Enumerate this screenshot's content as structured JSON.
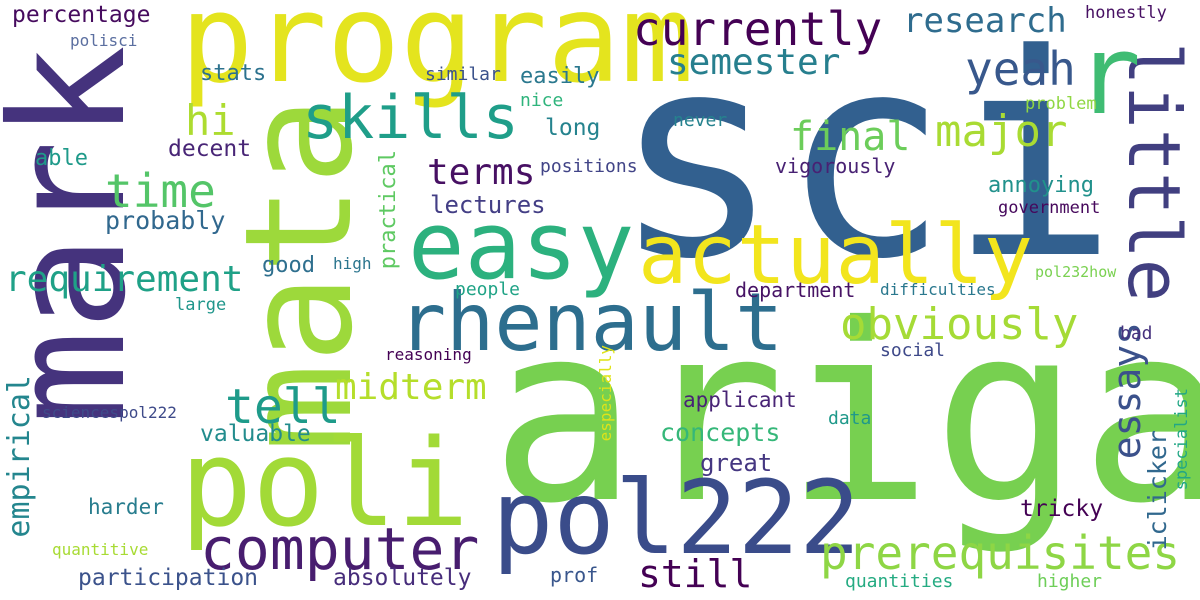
{
  "words": [
    {
      "text": "sci",
      "color": "#32608f",
      "vertical": false
    },
    {
      "text": "ariga",
      "color": "#77d050",
      "vertical": false
    },
    {
      "text": "mark",
      "color": "#45337d",
      "vertical": true
    },
    {
      "text": "program",
      "color": "#e4e41e",
      "vertical": false
    },
    {
      "text": "mata",
      "color": "#9dd93b",
      "vertical": true
    },
    {
      "text": "poli",
      "color": "#a2da37",
      "vertical": false
    },
    {
      "text": "pol222",
      "color": "#3a4c8a",
      "vertical": false
    },
    {
      "text": "easy",
      "color": "#2cb17e",
      "vertical": false
    },
    {
      "text": "actually",
      "color": "#f2e51d",
      "vertical": false
    },
    {
      "text": "rhenault",
      "color": "#2d6e8e",
      "vertical": false
    },
    {
      "text": "little",
      "color": "#413f80",
      "vertical": true
    },
    {
      "text": "r",
      "color": "#3fbc73",
      "vertical": false
    },
    {
      "text": "computer",
      "color": "#481d6f",
      "vertical": false
    },
    {
      "text": "prerequisites",
      "color": "#8ed645",
      "vertical": false
    },
    {
      "text": "skills",
      "color": "#1f9e89",
      "vertical": false
    },
    {
      "text": "currently",
      "color": "#440154",
      "vertical": false
    },
    {
      "text": "obviously",
      "color": "#a5db36",
      "vertical": false
    },
    {
      "text": "yeah",
      "color": "#38588c",
      "vertical": false
    },
    {
      "text": "major",
      "color": "#a9db33",
      "vertical": false
    },
    {
      "text": "research",
      "color": "#2f6c8e",
      "vertical": false
    },
    {
      "text": "semester",
      "color": "#277f8e",
      "vertical": false
    },
    {
      "text": "time",
      "color": "#54c568",
      "vertical": false
    },
    {
      "text": "final",
      "color": "#6ccd5a",
      "vertical": false
    },
    {
      "text": "hi",
      "color": "#addc30",
      "vertical": false
    },
    {
      "text": "tell",
      "color": "#1e9b8a",
      "vertical": false
    },
    {
      "text": "terms",
      "color": "#471063",
      "vertical": false
    },
    {
      "text": "requirement",
      "color": "#1fa187",
      "vertical": false
    },
    {
      "text": "midterm",
      "color": "#b5de2b",
      "vertical": false
    },
    {
      "text": "still",
      "color": "#440154",
      "vertical": false
    },
    {
      "text": "essays",
      "color": "#3b518b",
      "vertical": true
    },
    {
      "text": "empirical",
      "color": "#24868e",
      "vertical": true
    },
    {
      "text": "concepts",
      "color": "#35b779",
      "vertical": false
    },
    {
      "text": "lectures",
      "color": "#433e85",
      "vertical": false
    },
    {
      "text": "stats",
      "color": "#2c728e",
      "vertical": false
    },
    {
      "text": "percentage",
      "color": "#460b5e",
      "vertical": false
    },
    {
      "text": "probably",
      "color": "#31688e",
      "vertical": false
    },
    {
      "text": "valuable",
      "color": "#228c8d",
      "vertical": false
    },
    {
      "text": "annoying",
      "color": "#21918c",
      "vertical": false
    },
    {
      "text": "decent",
      "color": "#482576",
      "vertical": false
    },
    {
      "text": "participation",
      "color": "#3b528b",
      "vertical": false
    },
    {
      "text": "absolutely",
      "color": "#472d7b",
      "vertical": false
    },
    {
      "text": "great",
      "color": "#453781",
      "vertical": false
    },
    {
      "text": "easily",
      "color": "#2a788e",
      "vertical": false
    },
    {
      "text": "long",
      "color": "#25838e",
      "vertical": false
    },
    {
      "text": "good",
      "color": "#2e6f8e",
      "vertical": false
    },
    {
      "text": "iclicker",
      "color": "#31688e",
      "vertical": true
    },
    {
      "text": "practical",
      "color": "#5ec962",
      "vertical": true
    },
    {
      "text": "vigorously",
      "color": "#482173",
      "vertical": false
    },
    {
      "text": "harder",
      "color": "#287d8e",
      "vertical": false
    },
    {
      "text": "tricky",
      "color": "#440154",
      "vertical": false
    },
    {
      "text": "able",
      "color": "#1f9a8a",
      "vertical": false
    },
    {
      "text": "department",
      "color": "#471365",
      "vertical": false
    },
    {
      "text": "applicant",
      "color": "#482475",
      "vertical": false
    },
    {
      "text": "prof",
      "color": "#39568c",
      "vertical": false
    },
    {
      "text": "government",
      "color": "#46085c",
      "vertical": false
    },
    {
      "text": "honestly",
      "color": "#471063",
      "vertical": false
    },
    {
      "text": "nice",
      "color": "#2fb47c",
      "vertical": false
    },
    {
      "text": "similar",
      "color": "#3b528b",
      "vertical": false
    },
    {
      "text": "positions",
      "color": "#414487",
      "vertical": false
    },
    {
      "text": "people",
      "color": "#20a386",
      "vertical": false
    },
    {
      "text": "never",
      "color": "#26828e",
      "vertical": false
    },
    {
      "text": "problem",
      "color": "#90d743",
      "vertical": false
    },
    {
      "text": "data",
      "color": "#1f998a",
      "vertical": false
    },
    {
      "text": "social",
      "color": "#3e4989",
      "vertical": false
    },
    {
      "text": "bad",
      "color": "#46327e",
      "vertical": false
    },
    {
      "text": "specialist",
      "color": "#22a785",
      "vertical": true
    },
    {
      "text": "higher",
      "color": "#6ece58",
      "vertical": false
    },
    {
      "text": "quantities",
      "color": "#25ab82",
      "vertical": false
    },
    {
      "text": "especially",
      "color": "#dfe318",
      "vertical": true
    },
    {
      "text": "reasoning",
      "color": "#440154",
      "vertical": false
    },
    {
      "text": "sciencespol222",
      "color": "#3e4a89",
      "vertical": false
    },
    {
      "text": "quantitive",
      "color": "#a8db34",
      "vertical": false
    },
    {
      "text": "large",
      "color": "#1f968b",
      "vertical": false
    },
    {
      "text": "high",
      "color": "#2b758e",
      "vertical": false
    },
    {
      "text": "difficulties",
      "color": "#2a788e",
      "vertical": false
    },
    {
      "text": "pol232how",
      "color": "#7ad151",
      "vertical": false
    },
    {
      "text": "polisci",
      "color": "#5b6fa0",
      "vertical": false
    }
  ]
}
